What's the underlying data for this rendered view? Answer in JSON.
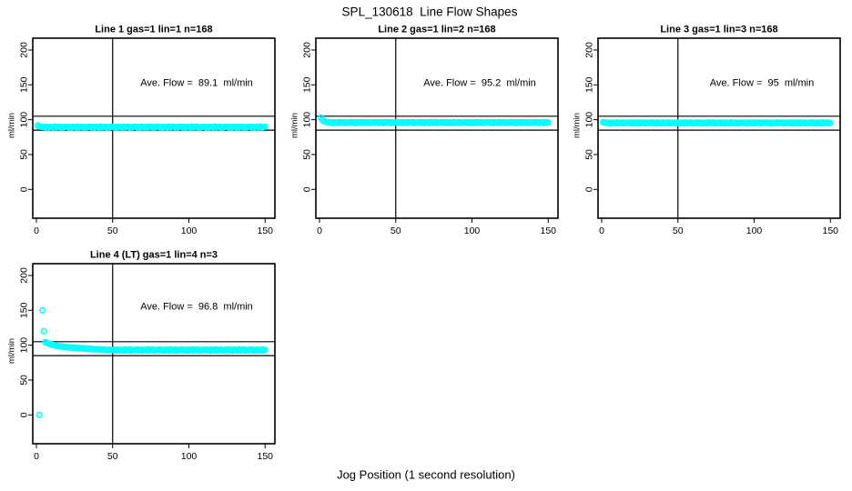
{
  "figure": {
    "title": "SPL_130618  Line Flow Shapes",
    "xlabel": "Jog Position (1 second resolution)",
    "bg_color": "#ffffff",
    "point_color": "#00ffff",
    "axis_color": "#000000"
  },
  "axes": {
    "x_ticks": [
      0,
      50,
      100,
      150
    ],
    "y_ticks": [
      0,
      50,
      100,
      150,
      200
    ],
    "ref_h": [
      85,
      105
    ],
    "ref_v": 50,
    "xlim": [
      0,
      155
    ],
    "ylim": [
      0,
      200
    ],
    "grid": false
  },
  "chart_data": [
    {
      "type": "scatter",
      "title": "Line 1 gas=1 lin=1 n=168",
      "annotation": "Ave. Flow =  89.1  ml/min",
      "ave_flow": 89.1,
      "n": 168,
      "ylab": "ml/min",
      "x_start": 1,
      "x_step": 1,
      "y": [
        91.5,
        90.2,
        89.8,
        89.5,
        89.9,
        88.9,
        89.6,
        88.6,
        89.8,
        89.3,
        88.8,
        90.1,
        89.0,
        89.5,
        90.0,
        88.7,
        89.4,
        89.1,
        89.7,
        89.9,
        88.9,
        89.6,
        88.6,
        89.8,
        89.3,
        88.8,
        90.1,
        89.0,
        89.5,
        90.0,
        88.7,
        89.4,
        89.1,
        89.7,
        89.9,
        88.9,
        89.6,
        88.6,
        89.8,
        89.3,
        88.8,
        90.1,
        89.0,
        89.5,
        90.0,
        88.7,
        89.4,
        89.1,
        89.7,
        89.9,
        88.9,
        89.6,
        88.6,
        89.8,
        89.3,
        88.8,
        90.1,
        89.0,
        89.5,
        90.0,
        88.7,
        89.4,
        89.1,
        89.7,
        89.9,
        88.9,
        89.6,
        88.6,
        89.8,
        89.3,
        88.8,
        90.1,
        89.0,
        89.5,
        90.0,
        88.7,
        89.4,
        89.1,
        89.7,
        89.9,
        88.9,
        89.6,
        88.6,
        89.8,
        89.3,
        88.8,
        90.1,
        89.0,
        89.5,
        90.0,
        88.7,
        89.4,
        89.1,
        89.7,
        89.9,
        88.9,
        89.6,
        88.6,
        89.8,
        89.3,
        88.8,
        90.1,
        89.0,
        89.5,
        90.0,
        88.7,
        89.4,
        89.1,
        89.7,
        89.9,
        88.9,
        89.6,
        88.6,
        89.8,
        89.3,
        88.8,
        90.1,
        89.0,
        89.5,
        90.0,
        88.7,
        89.4,
        89.1,
        89.7,
        89.9,
        88.9,
        89.6,
        88.6,
        89.8,
        89.3,
        88.8,
        90.1,
        89.0,
        89.5,
        90.0,
        88.7,
        89.4,
        89.1,
        89.7,
        89.9,
        88.9,
        89.6,
        88.6,
        89.8,
        89.3,
        88.8,
        90.1,
        89.0,
        89.5,
        90.0
      ],
      "extra_points": []
    },
    {
      "type": "scatter",
      "title": "Line 2 gas=1 lin=2 n=168",
      "annotation": "Ave. Flow =  95.2  ml/min",
      "ave_flow": 95.2,
      "n": 168,
      "ylab": "ml/min",
      "x_start": 1,
      "x_step": 1,
      "y": [
        102.8,
        99.5,
        97.8,
        96.9,
        96.4,
        96.4,
        95.4,
        96.1,
        95.1,
        96.3,
        95.8,
        95.3,
        96.6,
        95.5,
        96.0,
        96.5,
        95.2,
        95.9,
        95.6,
        96.2,
        96.4,
        95.4,
        96.1,
        95.1,
        96.3,
        95.8,
        95.3,
        96.6,
        95.5,
        96.0,
        96.5,
        95.2,
        95.9,
        95.6,
        96.2,
        96.4,
        95.4,
        96.1,
        95.1,
        96.3,
        95.8,
        95.3,
        96.6,
        95.5,
        96.0,
        96.5,
        95.2,
        95.9,
        95.6,
        96.2,
        96.4,
        95.4,
        96.1,
        95.1,
        96.3,
        95.8,
        95.3,
        96.6,
        95.5,
        96.0,
        96.5,
        95.2,
        95.9,
        95.6,
        96.2,
        96.4,
        95.4,
        96.1,
        95.1,
        96.3,
        95.8,
        95.3,
        96.6,
        95.5,
        96.0,
        96.5,
        95.2,
        95.9,
        95.6,
        96.2,
        96.4,
        95.4,
        96.1,
        95.1,
        96.3,
        95.8,
        95.3,
        96.6,
        95.5,
        96.0,
        96.5,
        95.2,
        95.9,
        95.6,
        96.2,
        96.4,
        95.4,
        96.1,
        95.1,
        96.3,
        95.8,
        95.3,
        96.6,
        95.5,
        96.0,
        96.5,
        95.2,
        95.9,
        95.6,
        96.2,
        96.4,
        95.4,
        96.1,
        95.1,
        96.3,
        95.8,
        95.3,
        96.6,
        95.5,
        96.0,
        96.5,
        95.2,
        95.9,
        95.6,
        96.2,
        96.4,
        95.4,
        96.1,
        95.1,
        96.3,
        95.8,
        95.3,
        96.6,
        95.5,
        96.0,
        96.5,
        95.2,
        95.9,
        95.6,
        96.2,
        96.4,
        95.4,
        96.1,
        95.1,
        96.3,
        95.8,
        95.3,
        96.6,
        95.5,
        96.0
      ],
      "extra_points": []
    },
    {
      "type": "scatter",
      "title": "Line 3 gas=1 lin=3 n=168",
      "annotation": "Ave. Flow =  95  ml/min",
      "ave_flow": 95,
      "n": 168,
      "ylab": "ml/min",
      "x_start": 1,
      "x_step": 1,
      "y": [
        96.5,
        95.8,
        95.9,
        94.9,
        95.6,
        94.6,
        95.8,
        95.3,
        94.8,
        96.1,
        95.0,
        95.5,
        96.0,
        94.7,
        95.4,
        95.1,
        95.7,
        95.9,
        94.9,
        95.6,
        94.6,
        95.8,
        95.3,
        94.8,
        96.1,
        95.0,
        95.5,
        96.0,
        94.7,
        95.4,
        95.1,
        95.7,
        95.9,
        94.9,
        95.6,
        94.6,
        95.8,
        95.3,
        94.8,
        96.1,
        95.0,
        95.5,
        96.0,
        94.7,
        95.4,
        95.1,
        95.7,
        95.9,
        94.9,
        95.6,
        94.6,
        95.8,
        95.3,
        94.8,
        96.1,
        95.0,
        95.5,
        96.0,
        94.7,
        95.4,
        95.1,
        95.7,
        95.9,
        94.9,
        95.6,
        94.6,
        95.8,
        95.3,
        94.8,
        96.1,
        95.0,
        95.5,
        96.0,
        94.7,
        95.4,
        95.1,
        95.7,
        95.9,
        94.9,
        95.6,
        94.6,
        95.8,
        95.3,
        94.8,
        96.1,
        95.0,
        95.5,
        96.0,
        94.7,
        95.4,
        95.1,
        95.7,
        95.9,
        94.9,
        95.6,
        94.6,
        95.8,
        95.3,
        94.8,
        96.1,
        95.0,
        95.5,
        96.0,
        94.7,
        95.4,
        95.1,
        95.7,
        95.9,
        94.9,
        95.6,
        94.6,
        95.8,
        95.3,
        94.8,
        96.1,
        95.0,
        95.5,
        96.0,
        94.7,
        95.4,
        95.1,
        95.7,
        95.9,
        94.9,
        95.6,
        94.6,
        95.8,
        95.3,
        94.8,
        96.1,
        95.0,
        95.5,
        96.0,
        94.7,
        95.4,
        95.1,
        95.7,
        95.9,
        94.9,
        95.6,
        94.6,
        95.8,
        95.3,
        94.8,
        96.1,
        95.0,
        95.5,
        96.0,
        94.7,
        95.4
      ],
      "extra_points": []
    },
    {
      "type": "scatter",
      "title": "Line 4 (LT) gas=1 lin=4 n=3",
      "annotation": "Ave. Flow =  96.8  ml/min",
      "ave_flow": 96.8,
      "n": 3,
      "ylab": "ml/min",
      "x_start": 6,
      "x_step": 1,
      "y": [
        104.5,
        103.4,
        102.4,
        101.6,
        100.9,
        100.3,
        99.8,
        99.3,
        98.9,
        98.5,
        98.2,
        97.6,
        97.9,
        97.1,
        97.4,
        96.8,
        97.0,
        96.4,
        96.7,
        96.1,
        96.3,
        95.8,
        96.0,
        95.4,
        95.7,
        95.1,
        95.3,
        94.8,
        95.0,
        94.5,
        94.7,
        94.2,
        94.4,
        94.0,
        94.2,
        93.7,
        93.9,
        93.5,
        93.7,
        93.3,
        93.5,
        93.1,
        93.3,
        93.0,
        93.2,
        93.7,
        92.5,
        93.4,
        92.2,
        93.6,
        93.0,
        92.4,
        94.0,
        92.6,
        93.2,
        93.8,
        92.3,
        93.1,
        92.8,
        93.5,
        93.7,
        92.5,
        93.4,
        92.2,
        93.6,
        93.0,
        92.4,
        94.0,
        92.6,
        93.2,
        93.8,
        92.3,
        93.1,
        92.8,
        93.5,
        93.7,
        92.5,
        93.4,
        92.2,
        93.6,
        93.0,
        92.4,
        94.0,
        92.6,
        93.2,
        93.8,
        92.3,
        93.1,
        92.8,
        93.5,
        93.7,
        92.5,
        93.4,
        92.2,
        93.6,
        93.0,
        92.4,
        94.0,
        92.6,
        93.2,
        93.8,
        92.3,
        93.1,
        92.8,
        93.5,
        93.7,
        92.5,
        93.4,
        92.2,
        93.6,
        93.0,
        92.4,
        94.0,
        92.6,
        93.2,
        93.8,
        92.3,
        93.1,
        92.8,
        93.5,
        93.7,
        92.5,
        93.4,
        92.2,
        93.6,
        93.0,
        92.4,
        94.0,
        92.6,
        93.2,
        93.8,
        92.3,
        93.1,
        92.8,
        93.5,
        93.7,
        92.5,
        93.4,
        92.2,
        93.6,
        93.0,
        92.4,
        94.0,
        92.6,
        93.2
      ],
      "extra_points": [
        [
          2,
          0
        ],
        [
          4,
          150
        ],
        [
          5,
          120
        ]
      ]
    }
  ]
}
